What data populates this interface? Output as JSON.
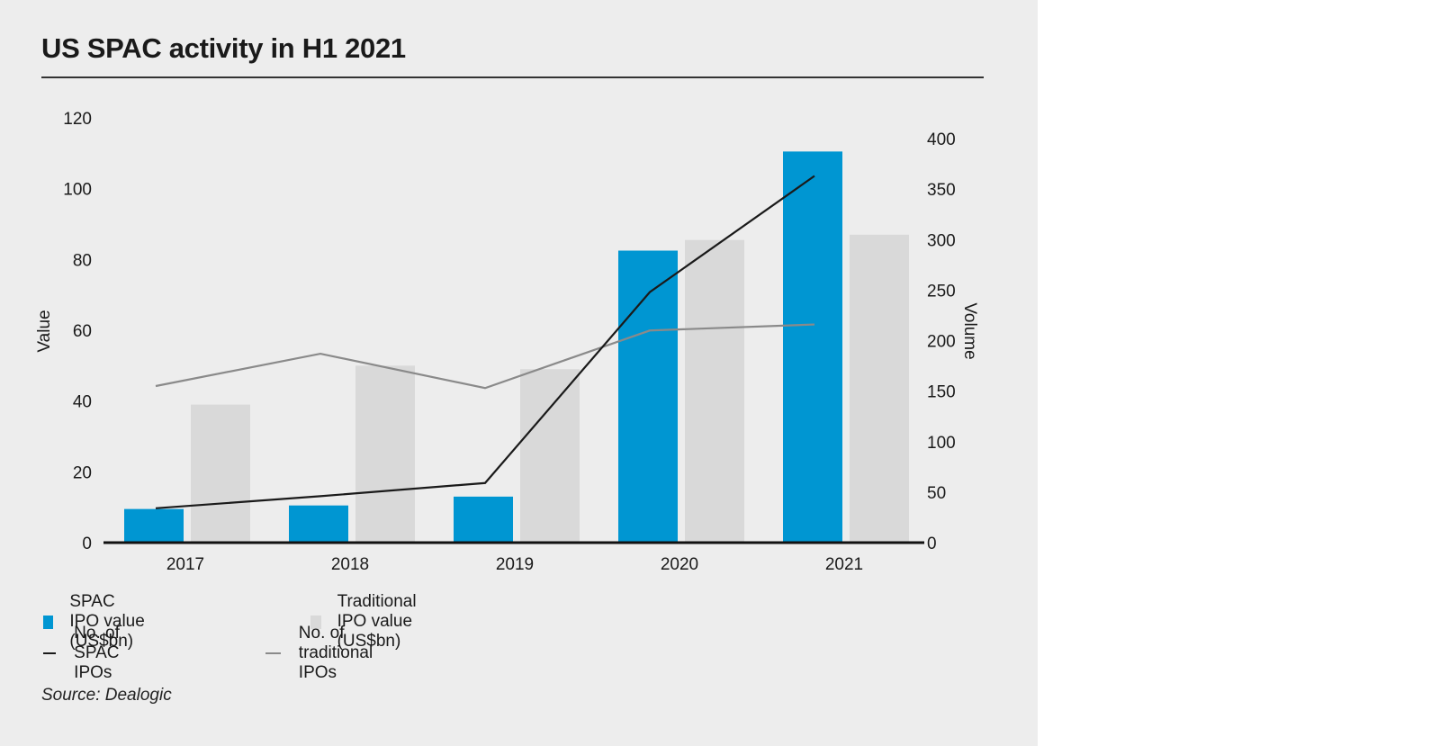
{
  "title": "US SPAC activity in H1 2021",
  "source": "Source: Dealogic",
  "colors": {
    "spac_bar": "#0096d2",
    "trad_bar": "#d9d9d9",
    "spac_line": "#1a1a1a",
    "trad_line": "#8a8a8a",
    "background": "#ededed"
  },
  "legend": {
    "spac_value": "SPAC IPO value (US$bn)",
    "trad_value": "Traditional IPO value (US$bn)",
    "spac_count": "No. of SPAC IPOs",
    "trad_count": "No. of traditional IPOs"
  },
  "chart_data": {
    "type": "bar",
    "categories": [
      "2017",
      "2018",
      "2019",
      "2020",
      "2021"
    ],
    "ylabel": "Value",
    "y2label": "Volume",
    "ylim": [
      0,
      120
    ],
    "y2lim": [
      0,
      400
    ],
    "yticks": [
      0,
      20,
      40,
      60,
      80,
      100,
      120
    ],
    "y2ticks": [
      0,
      50,
      100,
      150,
      200,
      250,
      300,
      350,
      400
    ],
    "series": [
      {
        "name": "SPAC IPO value (US$bn)",
        "kind": "bar",
        "axis": "left",
        "values": [
          9.5,
          10.5,
          13,
          82.5,
          110.5
        ]
      },
      {
        "name": "Traditional IPO value (US$bn)",
        "kind": "bar",
        "axis": "left",
        "values": [
          39,
          50,
          49,
          85.5,
          87
        ]
      },
      {
        "name": "No. of SPAC IPOs",
        "kind": "line",
        "axis": "right",
        "values": [
          34,
          46,
          59,
          248,
          363
        ]
      },
      {
        "name": "No. of traditional IPOs",
        "kind": "line",
        "axis": "right",
        "values": [
          155,
          187,
          153,
          210,
          216
        ]
      }
    ]
  }
}
